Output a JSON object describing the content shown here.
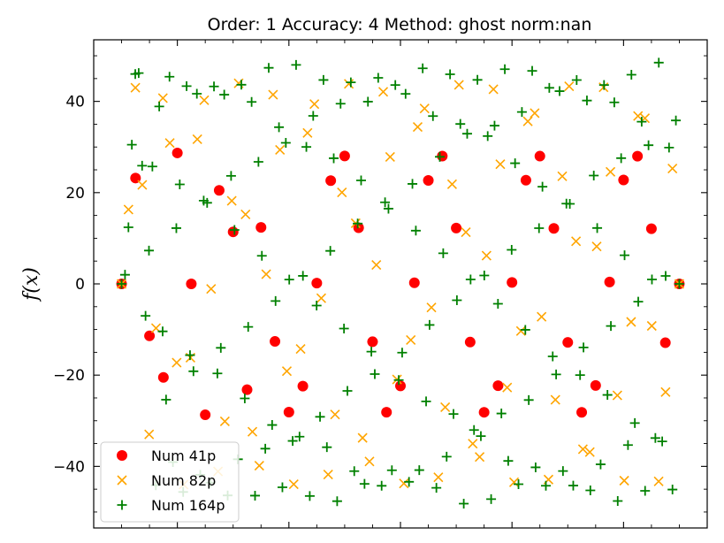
{
  "chart_data": {
    "type": "scatter",
    "title": "Order: 1 Accuracy: 4 Method: ghost norm:nan",
    "xlabel": "",
    "ylabel": "f(x)",
    "xlim": [
      -0.05,
      1.05
    ],
    "ylim": [
      -53.5,
      53.5
    ],
    "yticks": [
      -40,
      -20,
      0,
      20,
      40
    ],
    "yticklabels": [
      "−40",
      "−20",
      "0",
      "20",
      "40"
    ],
    "xticks": [
      0.1,
      0.3,
      0.5,
      0.7,
      0.9
    ],
    "xticklabels": [],
    "grid": false,
    "legend_position": "lower-left",
    "series": [
      {
        "name": "Num 41p",
        "marker": "circle",
        "color": "#ff0000",
        "n": 41,
        "amplitude": 28.8,
        "sample_y": [
          0,
          23.2,
          -11.4,
          -20.5,
          28.7,
          0,
          -28.7,
          20.5,
          11.4,
          -23.2
        ]
      },
      {
        "name": "Num 82p",
        "marker": "x",
        "color": "#ffa500",
        "n": 82,
        "amplitude": 44.0,
        "sample_y": [
          0,
          16.3,
          43.0,
          21.7,
          -33.0,
          -9.7
        ]
      },
      {
        "name": "Num 164p",
        "marker": "plus",
        "color": "#008000",
        "n": 164,
        "amplitude": 48.5,
        "sample_y": [
          0,
          2.0,
          12.4,
          30.5,
          46.0,
          46.2,
          25.9,
          -7.0
        ]
      }
    ]
  }
}
